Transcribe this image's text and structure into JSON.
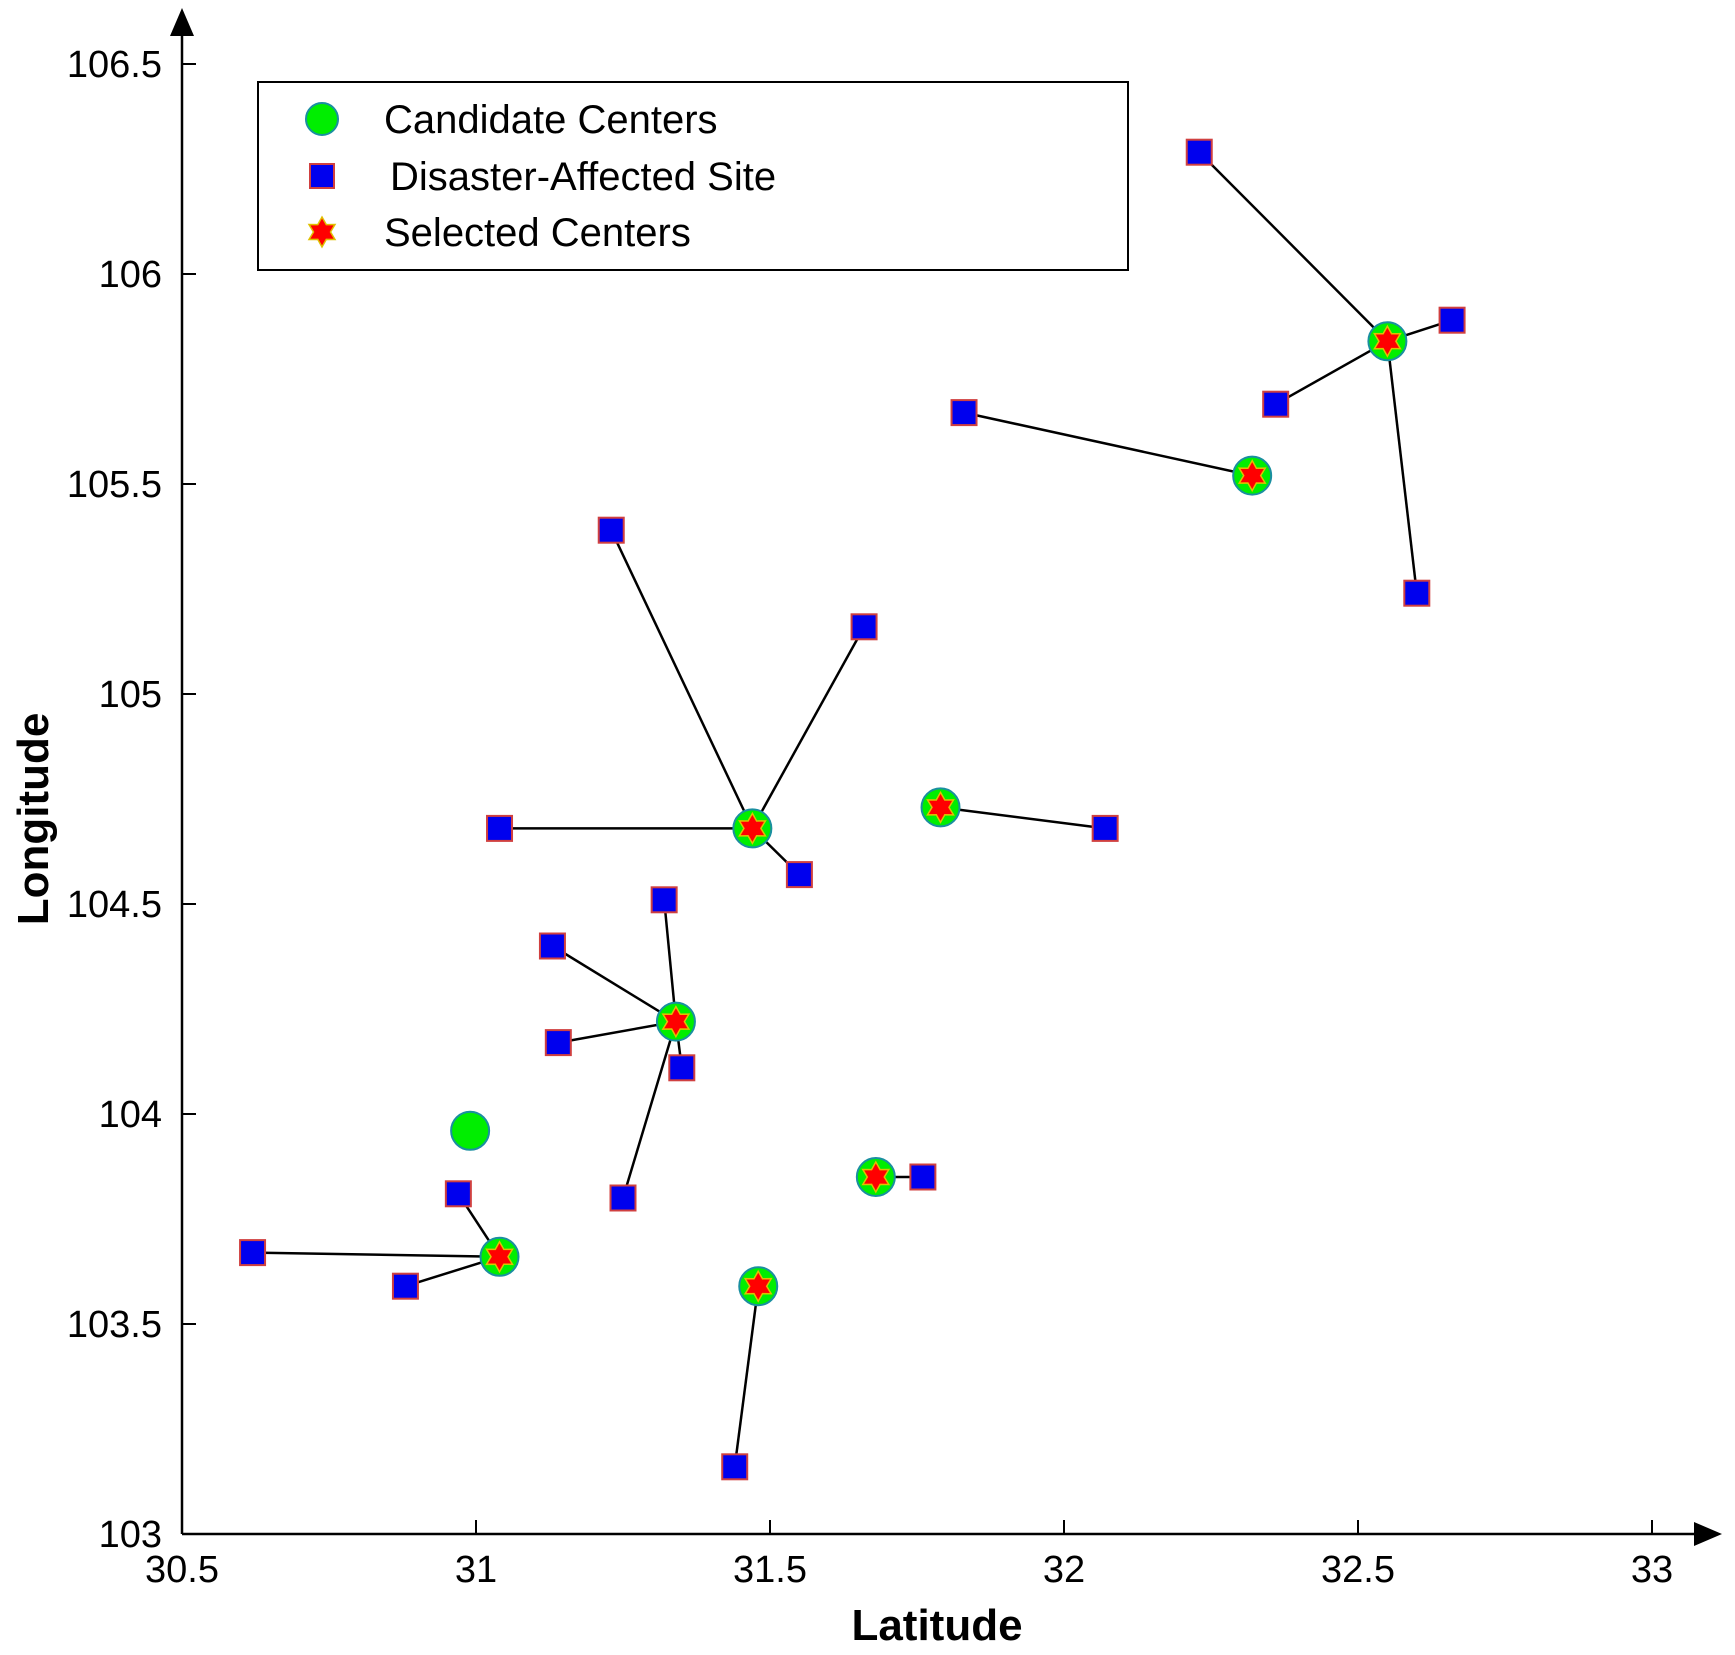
{
  "chart_data": {
    "type": "scatter",
    "title": "",
    "xlabel": "Latitude",
    "ylabel": "Longitude",
    "xlim": [
      30.5,
      33
    ],
    "ylim": [
      103,
      106.5
    ],
    "xticks": [
      {
        "value": 30.5,
        "label": "30.5"
      },
      {
        "value": 31,
        "label": "31"
      },
      {
        "value": 31.5,
        "label": "31.5"
      },
      {
        "value": 32,
        "label": "32"
      },
      {
        "value": 32.5,
        "label": "32.5"
      },
      {
        "value": 33,
        "label": "33"
      }
    ],
    "yticks": [
      {
        "value": 103,
        "label": "103"
      },
      {
        "value": 103.5,
        "label": "103.5"
      },
      {
        "value": 104,
        "label": "104"
      },
      {
        "value": 104.5,
        "label": "104.5"
      },
      {
        "value": 105,
        "label": "105"
      },
      {
        "value": 105.5,
        "label": "105.5"
      },
      {
        "value": 106,
        "label": "106"
      },
      {
        "value": 106.5,
        "label": "106.5"
      }
    ],
    "legend": {
      "position": "top-left",
      "entries": [
        {
          "key": "candidate",
          "label": "Candidate Centers"
        },
        {
          "key": "site",
          "label": "Disaster-Affected Site"
        },
        {
          "key": "selected",
          "label": "Selected Centers"
        }
      ]
    },
    "colors": {
      "candidate_fill": "#00ee00",
      "candidate_edge": "#1a8fa0",
      "site_fill": "#0000ee",
      "site_edge": "#d04040",
      "star_fill": "#ff0000",
      "star_edge": "#e0c000",
      "link": "#000000"
    },
    "series": [
      {
        "name": "Candidate Centers",
        "points": [
          {
            "x": 30.99,
            "y": 103.96
          },
          {
            "x": 31.04,
            "y": 103.66
          },
          {
            "x": 31.34,
            "y": 104.22
          },
          {
            "x": 31.47,
            "y": 104.68
          },
          {
            "x": 31.48,
            "y": 103.59
          },
          {
            "x": 31.68,
            "y": 103.85
          },
          {
            "x": 31.79,
            "y": 104.73
          },
          {
            "x": 32.32,
            "y": 105.52
          },
          {
            "x": 32.55,
            "y": 105.84
          }
        ]
      },
      {
        "name": "Selected Centers",
        "points": [
          {
            "x": 31.04,
            "y": 103.66
          },
          {
            "x": 31.34,
            "y": 104.22
          },
          {
            "x": 31.47,
            "y": 104.68
          },
          {
            "x": 31.48,
            "y": 103.59
          },
          {
            "x": 31.68,
            "y": 103.85
          },
          {
            "x": 31.79,
            "y": 104.73
          },
          {
            "x": 32.32,
            "y": 105.52
          },
          {
            "x": 32.55,
            "y": 105.84
          }
        ]
      },
      {
        "name": "Disaster-Affected Site",
        "points": [
          {
            "x": 30.62,
            "y": 103.67
          },
          {
            "x": 30.88,
            "y": 103.59
          },
          {
            "x": 30.97,
            "y": 103.81
          },
          {
            "x": 31.25,
            "y": 103.8
          },
          {
            "x": 31.14,
            "y": 104.17
          },
          {
            "x": 31.13,
            "y": 104.4
          },
          {
            "x": 31.32,
            "y": 104.51
          },
          {
            "x": 31.35,
            "y": 104.11
          },
          {
            "x": 31.04,
            "y": 104.68
          },
          {
            "x": 31.55,
            "y": 104.57
          },
          {
            "x": 31.66,
            "y": 105.16
          },
          {
            "x": 31.23,
            "y": 105.39
          },
          {
            "x": 31.44,
            "y": 103.16
          },
          {
            "x": 31.76,
            "y": 103.85
          },
          {
            "x": 32.07,
            "y": 104.68
          },
          {
            "x": 31.83,
            "y": 105.67
          },
          {
            "x": 32.23,
            "y": 106.29
          },
          {
            "x": 32.36,
            "y": 105.69
          },
          {
            "x": 32.66,
            "y": 105.89
          },
          {
            "x": 32.6,
            "y": 105.24
          }
        ]
      }
    ],
    "links": [
      {
        "from": [
          31.04,
          103.66
        ],
        "to": [
          30.62,
          103.67
        ]
      },
      {
        "from": [
          31.04,
          103.66
        ],
        "to": [
          30.88,
          103.59
        ]
      },
      {
        "from": [
          31.04,
          103.66
        ],
        "to": [
          30.97,
          103.81
        ]
      },
      {
        "from": [
          31.34,
          104.22
        ],
        "to": [
          31.25,
          103.8
        ]
      },
      {
        "from": [
          31.34,
          104.22
        ],
        "to": [
          31.14,
          104.17
        ]
      },
      {
        "from": [
          31.34,
          104.22
        ],
        "to": [
          31.13,
          104.4
        ]
      },
      {
        "from": [
          31.34,
          104.22
        ],
        "to": [
          31.32,
          104.51
        ]
      },
      {
        "from": [
          31.34,
          104.22
        ],
        "to": [
          31.35,
          104.11
        ]
      },
      {
        "from": [
          31.47,
          104.68
        ],
        "to": [
          31.04,
          104.68
        ]
      },
      {
        "from": [
          31.47,
          104.68
        ],
        "to": [
          31.55,
          104.57
        ]
      },
      {
        "from": [
          31.47,
          104.68
        ],
        "to": [
          31.66,
          105.16
        ]
      },
      {
        "from": [
          31.47,
          104.68
        ],
        "to": [
          31.23,
          105.39
        ]
      },
      {
        "from": [
          31.48,
          103.59
        ],
        "to": [
          31.44,
          103.16
        ]
      },
      {
        "from": [
          31.68,
          103.85
        ],
        "to": [
          31.76,
          103.85
        ]
      },
      {
        "from": [
          31.79,
          104.73
        ],
        "to": [
          32.07,
          104.68
        ]
      },
      {
        "from": [
          32.32,
          105.52
        ],
        "to": [
          31.83,
          105.67
        ]
      },
      {
        "from": [
          32.55,
          105.84
        ],
        "to": [
          32.23,
          106.29
        ]
      },
      {
        "from": [
          32.55,
          105.84
        ],
        "to": [
          32.36,
          105.69
        ]
      },
      {
        "from": [
          32.55,
          105.84
        ],
        "to": [
          32.66,
          105.89
        ]
      },
      {
        "from": [
          32.55,
          105.84
        ],
        "to": [
          32.6,
          105.24
        ]
      }
    ]
  }
}
